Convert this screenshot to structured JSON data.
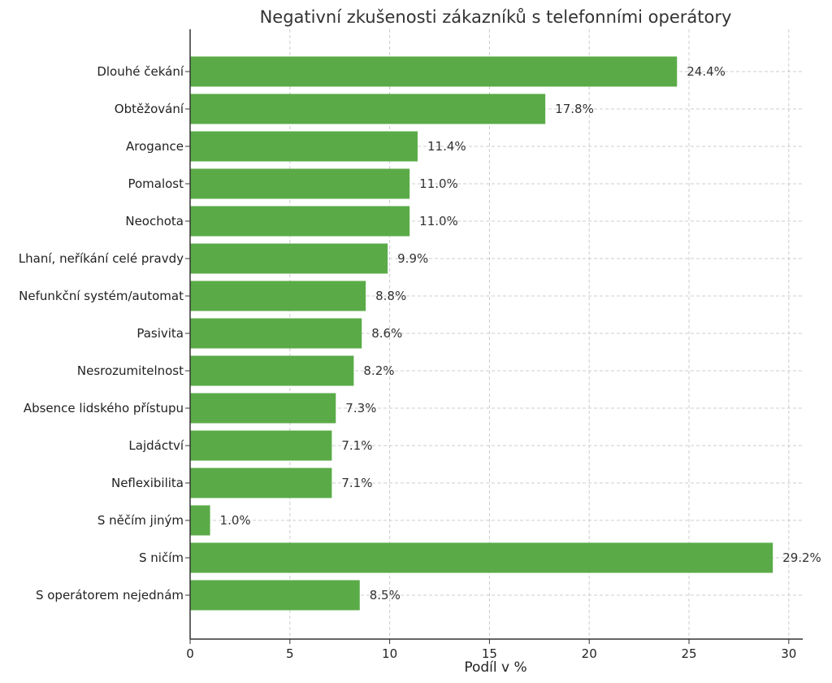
{
  "chart_data": {
    "type": "bar",
    "orientation": "horizontal",
    "title": "Negativní zkušenosti zákazníků s telefonními operátory",
    "xlabel": "Podíl v %",
    "ylabel": "",
    "categories": [
      "Dlouhé čekání",
      "Obtěžování",
      "Arogance",
      "Pomalost",
      "Neochota",
      "Lhaní, neříkání celé pravdy",
      "Nefunkční systém/automat",
      "Pasivita",
      "Nesrozumitelnost",
      "Absence lidského přístupu",
      "Lajdáctví",
      "Neflexibilita",
      "S něčím jiným",
      "S ničím",
      "S operátorem nejednám"
    ],
    "values": [
      24.4,
      17.8,
      11.4,
      11.0,
      11.0,
      9.9,
      8.8,
      8.6,
      8.2,
      7.3,
      7.1,
      7.1,
      1.0,
      29.2,
      8.5
    ],
    "value_labels": [
      "24.4%",
      "17.8%",
      "11.4%",
      "11.0%",
      "11.0%",
      "9.9%",
      "8.8%",
      "8.6%",
      "8.2%",
      "7.3%",
      "7.1%",
      "7.1%",
      "1.0%",
      "29.2%",
      "8.5%"
    ],
    "xticks": [
      0,
      5,
      10,
      15,
      20,
      25,
      30
    ],
    "xlim": [
      0,
      30.7
    ],
    "grid": true,
    "grid_style": "dashed",
    "legend": "none",
    "bar_color": "#5aab47"
  }
}
